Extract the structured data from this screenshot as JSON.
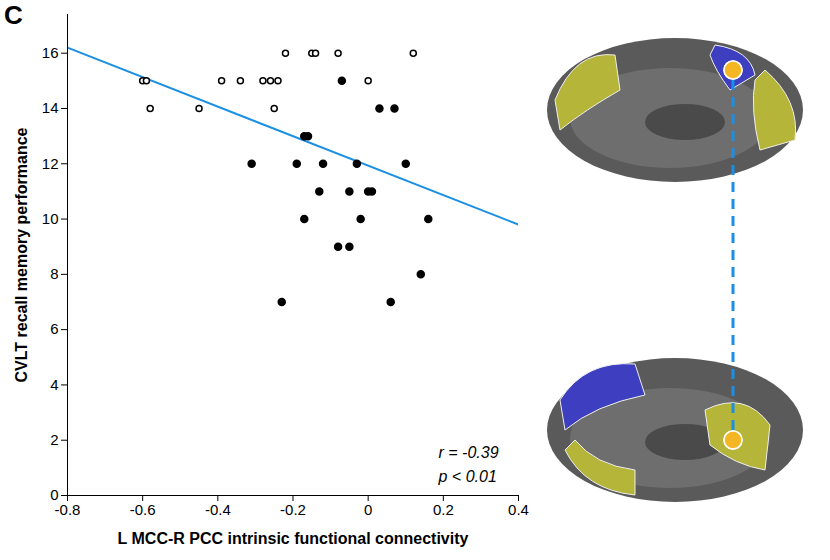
{
  "chart_data": {
    "type": "scatter",
    "panel_label": "C",
    "x_label": "L MCC-R PCC intrinsic functional connectivity",
    "y_label": "CVLT recall memory performance",
    "xlim": [
      -0.8,
      0.4
    ],
    "ylim": [
      0,
      17.4
    ],
    "xticks": [
      -0.8,
      -0.6,
      -0.4,
      -0.2,
      0,
      0.2,
      0.4
    ],
    "yticks": [
      0,
      2,
      4,
      6,
      8,
      10,
      12,
      14,
      16
    ],
    "grid": false,
    "series": [
      {
        "marker": "open_circle",
        "color": "#000000",
        "x": [
          -0.6,
          -0.59,
          -0.58,
          -0.45,
          -0.39,
          -0.34,
          -0.28,
          -0.26,
          -0.25,
          -0.24,
          -0.22,
          -0.15,
          -0.14,
          -0.08,
          0.0,
          0.12
        ],
        "y": [
          15,
          15,
          14,
          14,
          15,
          15,
          15,
          15,
          14,
          15,
          16,
          16,
          16,
          16,
          15,
          16
        ]
      },
      {
        "marker": "filled_circle",
        "color": "#000000",
        "x": [
          -0.31,
          -0.23,
          -0.19,
          -0.17,
          -0.16,
          -0.17,
          -0.13,
          -0.12,
          -0.07,
          -0.08,
          -0.05,
          -0.05,
          -0.03,
          -0.02,
          0.0,
          0.01,
          0.03,
          0.07,
          0.06,
          0.1,
          0.14,
          0.16
        ],
        "y": [
          12,
          7,
          12,
          13,
          13,
          10,
          11,
          12,
          15,
          9,
          9,
          11,
          12,
          10,
          11,
          11,
          14,
          14,
          7,
          12,
          8,
          10
        ]
      }
    ],
    "fit_line": {
      "color": "#1a8fe3",
      "x": [
        -0.8,
        0.4
      ],
      "y": [
        16.2,
        9.8
      ]
    },
    "annotations": [
      "r = -0.39",
      "p < 0.01"
    ]
  }
}
